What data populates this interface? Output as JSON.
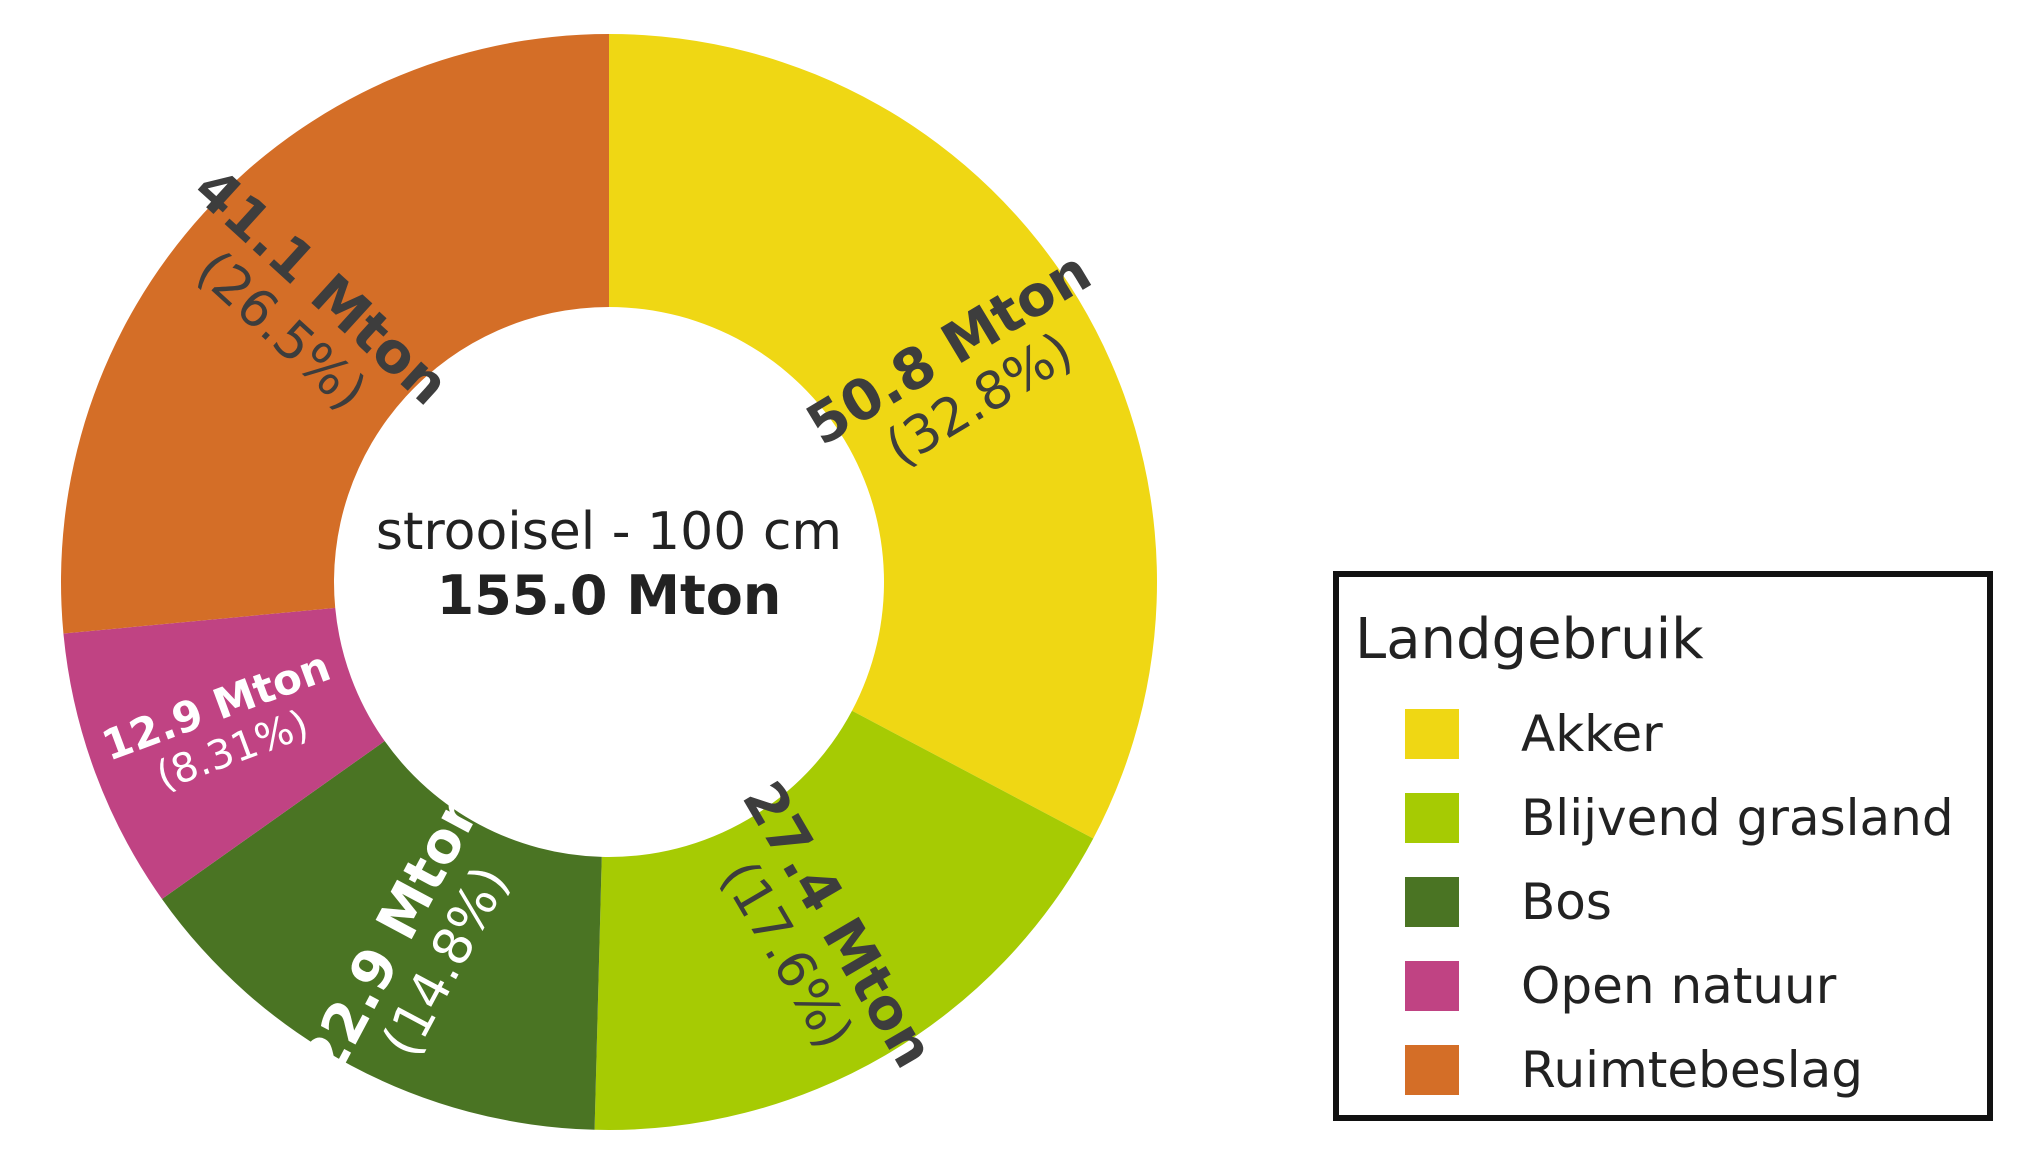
{
  "chart_data": {
    "type": "pie",
    "subtype": "donut",
    "center_title": "strooisel - 100 cm",
    "center_total": "155.0 Mton",
    "total_mton": 155.0,
    "legend_title": "Landgebruik",
    "legend_position": "right",
    "categories": [
      "Akker",
      "Blijvend grasland",
      "Bos",
      "Open natuur",
      "Ruimtebeslag"
    ],
    "values": [
      50.8,
      27.4,
      22.9,
      12.9,
      41.1
    ],
    "percentages": [
      32.8,
      17.6,
      14.8,
      8.31,
      26.5
    ],
    "unit": "Mton",
    "colors": [
      "#EFD714",
      "#A6CB03",
      "#4A7423",
      "#C04383",
      "#D46E27"
    ],
    "labels": [
      {
        "value": "50.8 Mton",
        "pct": "(32.8%)"
      },
      {
        "value": "27.4 Mton",
        "pct": "(17.6%)"
      },
      {
        "value": "22.9 Mton",
        "pct": "(14.8%)"
      },
      {
        "value": "12.9 Mton",
        "pct": "(8.31%)"
      },
      {
        "value": "41.1 Mton",
        "pct": "(26.5%)"
      }
    ]
  }
}
